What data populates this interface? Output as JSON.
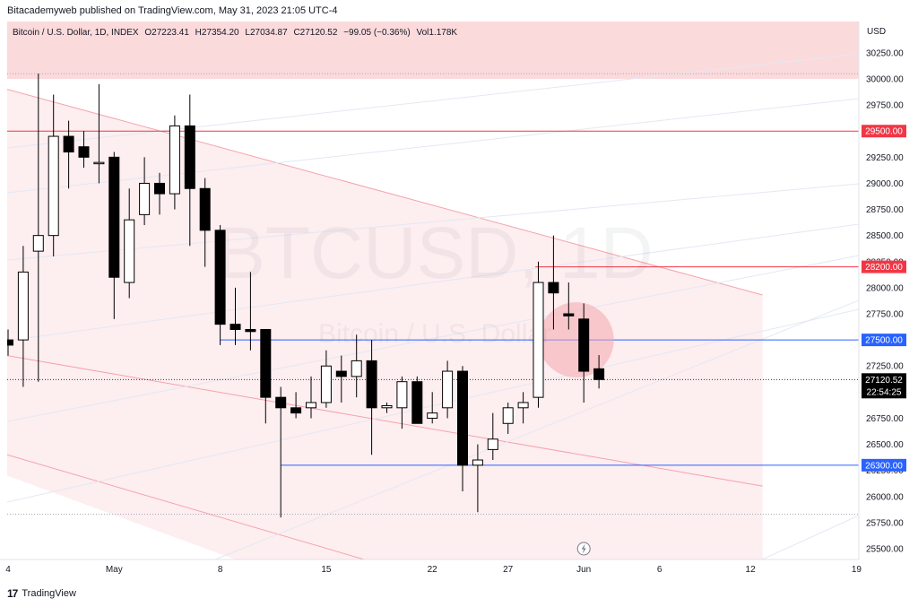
{
  "header": {
    "published": "Bitacademyweb published on TradingView.com, May 31, 2023 21:05 UTC-4",
    "symbol": "Bitcoin / U.S. Dollar, 1D, INDEX",
    "open": "O27223.41",
    "high": "H27354.20",
    "low": "L27034.87",
    "close": "C27120.52",
    "change": "−99.05 (−0.36%)",
    "volume": "Vol1.178K"
  },
  "watermark": {
    "ticker": "BTCUSD, 1D",
    "name": "Bitcoin / U.S. Dollar"
  },
  "footer": {
    "brand": "TradingView",
    "logo": "17"
  },
  "colors": {
    "candle_border": "#000000",
    "bull_fill": "#ffffff",
    "bear_fill": "#000000",
    "red_line": "#f23645",
    "blue_line": "#2962ff",
    "zone_fill": "#fbdadc",
    "price_tag_bg": "#000000"
  },
  "chart_data": {
    "type": "candlestick",
    "currency": "USD",
    "y_ticks": [
      25500,
      25750,
      26000,
      26250,
      26500,
      26750,
      27000,
      27250,
      27500,
      27750,
      28000,
      28250,
      28500,
      28750,
      29000,
      29250,
      29500,
      29750,
      30000,
      30250
    ],
    "y_tick_labels": [
      "25500.00",
      "25750.00",
      "26000.00",
      "26250.00",
      "26500.00",
      "26750.00",
      "27000.00",
      "27250.00",
      "27500.00",
      "27750.00",
      "28000.00",
      "28250.00",
      "28500.00",
      "28750.00",
      "29000.00",
      "29250.00",
      "29500.00",
      "29750.00",
      "30000.00",
      "30250.00"
    ],
    "x_tick_labels": [
      {
        "day": 0,
        "label": "4"
      },
      {
        "day": 7,
        "label": "May"
      },
      {
        "day": 14,
        "label": "8"
      },
      {
        "day": 21,
        "label": "15"
      },
      {
        "day": 28,
        "label": "22"
      },
      {
        "day": 33,
        "label": "27"
      },
      {
        "day": 38,
        "label": "Jun"
      },
      {
        "day": 43,
        "label": "6"
      },
      {
        "day": 49,
        "label": "12"
      },
      {
        "day": 56,
        "label": "19"
      }
    ],
    "candles": [
      {
        "day": 0,
        "o": 27500,
        "h": 27600,
        "l": 27350,
        "c": 27450
      },
      {
        "day": 1,
        "o": 27500,
        "h": 28400,
        "l": 27050,
        "c": 28150
      },
      {
        "day": 2,
        "o": 28350,
        "h": 30050,
        "l": 27100,
        "c": 28500
      },
      {
        "day": 3,
        "o": 28500,
        "h": 29850,
        "l": 28300,
        "c": 29450
      },
      {
        "day": 4,
        "o": 29450,
        "h": 29600,
        "l": 28950,
        "c": 29300
      },
      {
        "day": 5,
        "o": 29350,
        "h": 29500,
        "l": 29150,
        "c": 29250
      },
      {
        "day": 6,
        "o": 29200,
        "h": 29950,
        "l": 29000,
        "c": 29200
      },
      {
        "day": 7,
        "o": 29250,
        "h": 29300,
        "l": 27700,
        "c": 28100
      },
      {
        "day": 8,
        "o": 28050,
        "h": 28950,
        "l": 27900,
        "c": 28650
      },
      {
        "day": 9,
        "o": 28700,
        "h": 29250,
        "l": 28600,
        "c": 29000
      },
      {
        "day": 10,
        "o": 29000,
        "h": 29100,
        "l": 28700,
        "c": 28900
      },
      {
        "day": 11,
        "o": 28900,
        "h": 29650,
        "l": 28750,
        "c": 29550
      },
      {
        "day": 12,
        "o": 29550,
        "h": 29850,
        "l": 28400,
        "c": 28950
      },
      {
        "day": 13,
        "o": 28950,
        "h": 29050,
        "l": 28200,
        "c": 28550
      },
      {
        "day": 14,
        "o": 28550,
        "h": 28600,
        "l": 27450,
        "c": 27650
      },
      {
        "day": 15,
        "o": 27650,
        "h": 28000,
        "l": 27450,
        "c": 27600
      },
      {
        "day": 16,
        "o": 27600,
        "h": 28150,
        "l": 27400,
        "c": 27580
      },
      {
        "day": 17,
        "o": 27600,
        "h": 27600,
        "l": 26700,
        "c": 26950
      },
      {
        "day": 18,
        "o": 26950,
        "h": 27050,
        "l": 25800,
        "c": 26850
      },
      {
        "day": 19,
        "o": 26850,
        "h": 27000,
        "l": 26750,
        "c": 26800
      },
      {
        "day": 20,
        "o": 26850,
        "h": 27150,
        "l": 26750,
        "c": 26900
      },
      {
        "day": 21,
        "o": 26900,
        "h": 27400,
        "l": 26850,
        "c": 27250
      },
      {
        "day": 22,
        "o": 27200,
        "h": 27350,
        "l": 26900,
        "c": 27150
      },
      {
        "day": 23,
        "o": 27150,
        "h": 27550,
        "l": 26950,
        "c": 27300
      },
      {
        "day": 24,
        "o": 27300,
        "h": 27500,
        "l": 26400,
        "c": 26850
      },
      {
        "day": 25,
        "o": 26850,
        "h": 26900,
        "l": 26800,
        "c": 26870
      },
      {
        "day": 26,
        "o": 26850,
        "h": 27150,
        "l": 26650,
        "c": 27100
      },
      {
        "day": 27,
        "o": 27100,
        "h": 27150,
        "l": 26700,
        "c": 26700
      },
      {
        "day": 28,
        "o": 26750,
        "h": 27000,
        "l": 26700,
        "c": 26800
      },
      {
        "day": 29,
        "o": 26850,
        "h": 27300,
        "l": 26750,
        "c": 27200
      },
      {
        "day": 30,
        "o": 27200,
        "h": 27250,
        "l": 26050,
        "c": 26300
      },
      {
        "day": 31,
        "o": 26300,
        "h": 26500,
        "l": 25850,
        "c": 26350
      },
      {
        "day": 32,
        "o": 26450,
        "h": 26800,
        "l": 26350,
        "c": 26550
      },
      {
        "day": 33,
        "o": 26700,
        "h": 26900,
        "l": 26600,
        "c": 26850
      },
      {
        "day": 34,
        "o": 26850,
        "h": 27000,
        "l": 26700,
        "c": 26900
      },
      {
        "day": 35,
        "o": 26950,
        "h": 28250,
        "l": 26850,
        "c": 28050
      },
      {
        "day": 36,
        "o": 28050,
        "h": 28500,
        "l": 27600,
        "c": 27950
      },
      {
        "day": 37,
        "o": 27750,
        "h": 28050,
        "l": 27600,
        "c": 27730
      },
      {
        "day": 38,
        "o": 27700,
        "h": 27850,
        "l": 26900,
        "c": 27200
      },
      {
        "day": 39,
        "o": 27223.41,
        "h": 27354.2,
        "l": 27034.87,
        "c": 27120.52
      }
    ],
    "horizontal_levels": [
      {
        "value": 29500,
        "label": "29500.00",
        "color": "red"
      },
      {
        "value": 28200,
        "label": "28200.00",
        "color": "red"
      },
      {
        "value": 27500,
        "label": "27500.00",
        "color": "blue"
      },
      {
        "value": 26300,
        "label": "26300.00",
        "color": "blue"
      }
    ],
    "last_price": {
      "value": 27120.52,
      "label": "27120.52",
      "countdown": "22:54:25"
    },
    "ylim": [
      25400,
      30400
    ]
  }
}
